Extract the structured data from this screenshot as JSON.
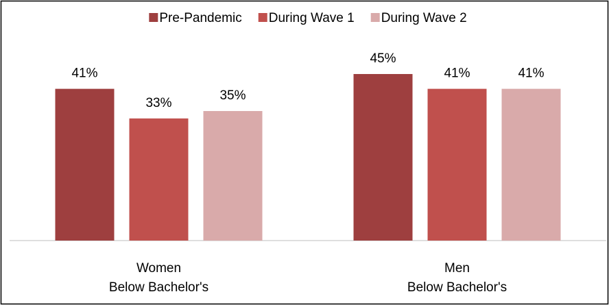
{
  "chart_data": {
    "type": "bar",
    "categories": [
      "Women\nBelow Bachelor's",
      "Men\nBelow Bachelor's"
    ],
    "series": [
      {
        "name": "Pre-Pandemic",
        "color": "#9e3f3f",
        "values": [
          41,
          45
        ],
        "value_labels": [
          "41%",
          "45%"
        ]
      },
      {
        "name": "During Wave 1",
        "color": "#c0504d",
        "values": [
          33,
          41
        ],
        "value_labels": [
          "33%",
          "41%"
        ]
      },
      {
        "name": "During Wave 2",
        "color": "#d9aaaa",
        "values": [
          35,
          41
        ],
        "value_labels": [
          "35%",
          "41%"
        ]
      }
    ],
    "ylim": [
      0,
      50
    ],
    "legend": "top"
  }
}
